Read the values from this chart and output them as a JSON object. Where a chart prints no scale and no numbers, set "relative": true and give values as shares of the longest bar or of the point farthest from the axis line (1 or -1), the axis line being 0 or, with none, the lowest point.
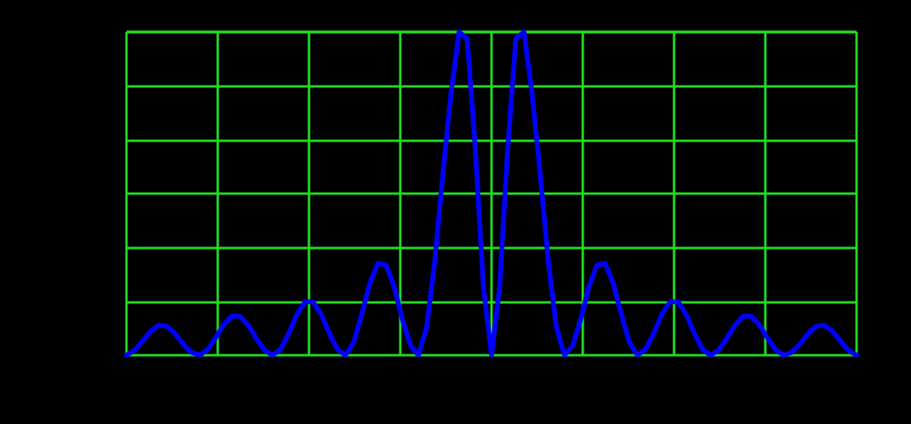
{
  "chart_data": {
    "type": "line",
    "relative": true,
    "grid": true,
    "marker": "none",
    "line_style": "solid",
    "categories": [
      null,
      null,
      null,
      null,
      null,
      null,
      null,
      null,
      null,
      null,
      null,
      null,
      null,
      null,
      null,
      null,
      null,
      null,
      null,
      null,
      null,
      null,
      null,
      null,
      null,
      null,
      null,
      null,
      null,
      null,
      null,
      null,
      null,
      null,
      null,
      null,
      null,
      null,
      null,
      null,
      null,
      null,
      null,
      null,
      null,
      null,
      null,
      null,
      null,
      null,
      null,
      null,
      null,
      null,
      null,
      null,
      null,
      null,
      null,
      null,
      null,
      null,
      null,
      null,
      null,
      null,
      null,
      null,
      null,
      null,
      null,
      null,
      null,
      null,
      null,
      null,
      null,
      null,
      null,
      null,
      null,
      null,
      null,
      null,
      null,
      null,
      null,
      null,
      null,
      null,
      null
    ],
    "series": [
      {
        "color": "#0000ff",
        "values": [
          0,
          0.015,
          0.044,
          0.075,
          0.093,
          0.089,
          0.066,
          0.034,
          0.009,
          0,
          0.017,
          0.054,
          0.095,
          0.121,
          0.12,
          0.093,
          0.052,
          0.016,
          0,
          0.018,
          0.068,
          0.126,
          0.165,
          0.165,
          0.127,
          0.068,
          0.019,
          0,
          0.039,
          0.126,
          0.223,
          0.284,
          0.279,
          0.211,
          0.112,
          0.03,
          0,
          0.086,
          0.29,
          0.56,
          0.81,
          1,
          0.98,
          0.64,
          0.21,
          0,
          0.21,
          0.64,
          0.98,
          1,
          0.81,
          0.56,
          0.29,
          0.086,
          0,
          0.03,
          0.112,
          0.211,
          0.279,
          0.284,
          0.223,
          0.126,
          0.039,
          0,
          0.019,
          0.068,
          0.127,
          0.165,
          0.165,
          0.126,
          0.068,
          0.018,
          0,
          0.016,
          0.052,
          0.093,
          0.12,
          0.121,
          0.095,
          0.054,
          0.017,
          0,
          0.009,
          0.034,
          0.066,
          0.089,
          0.093,
          0.075,
          0.044,
          0.015,
          0
        ]
      }
    ]
  }
}
